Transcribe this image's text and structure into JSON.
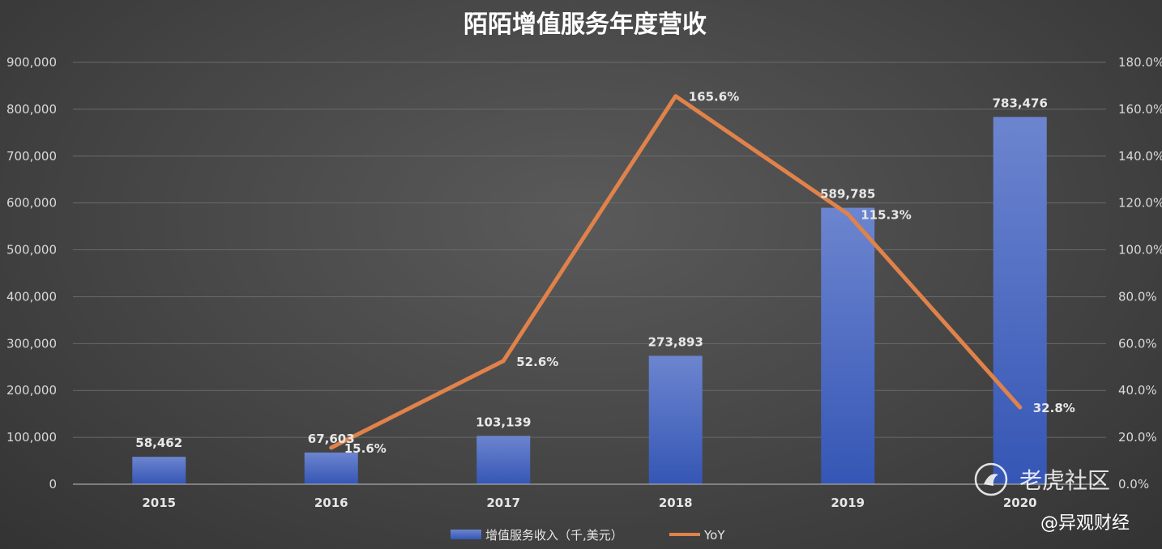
{
  "chart_data": {
    "type": "bar",
    "title": "陌陌增值服务年度营收",
    "categories": [
      "2015",
      "2016",
      "2017",
      "2018",
      "2019",
      "2020"
    ],
    "series": [
      {
        "name": "增值服务收入（千,美元）",
        "type": "bar",
        "axis": "left",
        "values": [
          58462,
          67603,
          103139,
          273893,
          589785,
          783476
        ],
        "labels": [
          "58,462",
          "67,603",
          "103,139",
          "273,893",
          "589,785",
          "783,476"
        ]
      },
      {
        "name": "YoY",
        "type": "line",
        "axis": "right",
        "values": [
          null,
          15.6,
          52.6,
          165.6,
          115.3,
          32.8
        ],
        "labels": [
          "",
          "15.6%",
          "52.6%",
          "165.6%",
          "115.3%",
          "32.8%"
        ]
      }
    ],
    "left_axis": {
      "ylim": [
        0,
        900000
      ],
      "ticks": [
        "0",
        "100,000",
        "200,000",
        "300,000",
        "400,000",
        "500,000",
        "600,000",
        "700,000",
        "800,000",
        "900,000"
      ]
    },
    "right_axis": {
      "ylim": [
        0,
        180
      ],
      "ticks": [
        "0.0%",
        "20.0%",
        "40.0%",
        "60.0%",
        "80.0%",
        "100.0%",
        "120.0%",
        "140.0%",
        "160.0%",
        "180.0%"
      ]
    },
    "grid": true,
    "legend": "bottom",
    "colors": {
      "bar_top": "#6c85cf",
      "bar_bottom": "#3556b5",
      "line": "#e0824a",
      "grid": "#6a6a6a"
    }
  },
  "watermark": {
    "brand": "老虎社区",
    "handle": "@异观财经"
  }
}
